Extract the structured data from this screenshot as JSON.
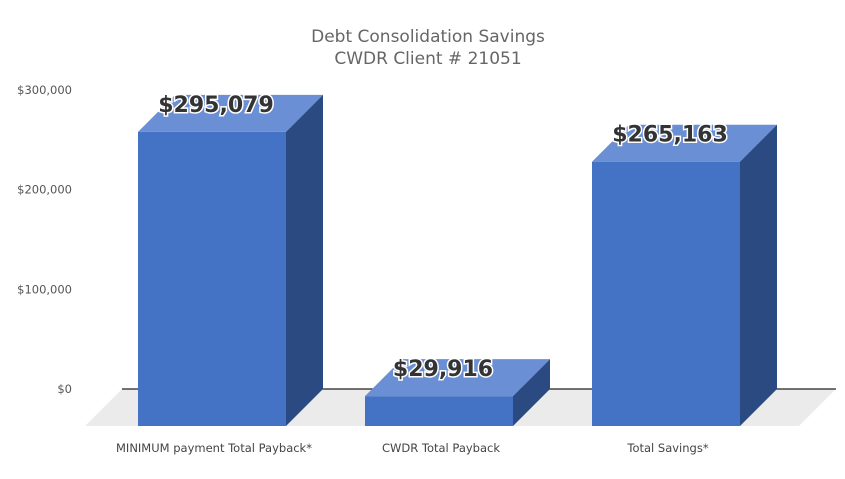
{
  "chart_data": {
    "type": "bar",
    "title": "Debt Consolidation Savings",
    "subtitle": "CWDR Client # 21051",
    "categories": [
      "MINIMUM payment Total Payback*",
      "CWDR Total Payback",
      "Total Savings*"
    ],
    "values": [
      295079,
      29916,
      265163
    ],
    "data_labels": [
      "$295,079",
      "$29,916",
      "$265,163"
    ],
    "yticks": [
      {
        "value": 0,
        "label": "$0"
      },
      {
        "value": 100000,
        "label": "$100,000"
      },
      {
        "value": 200000,
        "label": "$200,000"
      },
      {
        "value": 300000,
        "label": "$300,000"
      }
    ],
    "ylim": [
      0,
      300000
    ],
    "xlabel": "",
    "ylabel": "",
    "grid": false,
    "legend": "none",
    "style": "3d-column",
    "colors": {
      "front": "#4472C4",
      "top": "#6A8FD4",
      "side": "#2C4A82",
      "floor": "#EBEBEB",
      "axis_line": "#222222"
    }
  }
}
